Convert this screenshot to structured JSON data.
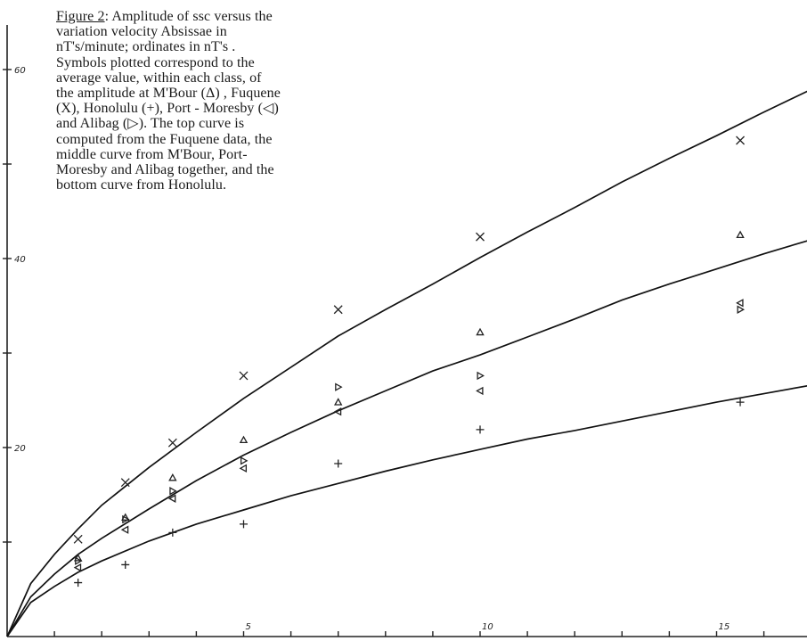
{
  "caption": {
    "figure_label": "Figure 2",
    "text": ": Amplitude of ssc versus the variation velocity Absissae in nT's/minute; ordinates in nT's . Symbols plotted correspond to the average value, within each class, of the amplitude at M'Bour (Δ) , Fuquene (X), Honolulu (+), Port - Moresby (◁) and Alibag (▷). The top curve is computed from the Fuquene data, the middle curve from M'Bour, Port-Moresby and Alibag together, and the bottom curve from Honolulu."
  },
  "chart_data": {
    "type": "scatter",
    "title": "",
    "xlabel": "",
    "ylabel": "",
    "xlim": [
      0,
      17
    ],
    "ylim": [
      0,
      67
    ],
    "x_ticks": [
      {
        "value": 1,
        "label": ""
      },
      {
        "value": 2,
        "label": ""
      },
      {
        "value": 3,
        "label": ""
      },
      {
        "value": 4,
        "label": ""
      },
      {
        "value": 5,
        "label": "5"
      },
      {
        "value": 6,
        "label": ""
      },
      {
        "value": 7,
        "label": ""
      },
      {
        "value": 8,
        "label": ""
      },
      {
        "value": 9,
        "label": ""
      },
      {
        "value": 10,
        "label": "10"
      },
      {
        "value": 11,
        "label": ""
      },
      {
        "value": 12,
        "label": ""
      },
      {
        "value": 13,
        "label": ""
      },
      {
        "value": 14,
        "label": ""
      },
      {
        "value": 15,
        "label": "15"
      },
      {
        "value": 16,
        "label": ""
      },
      {
        "value": 17,
        "label": ""
      }
    ],
    "y_ticks": [
      {
        "value": 10,
        "label": ""
      },
      {
        "value": 20,
        "label": "20"
      },
      {
        "value": 30,
        "label": ""
      },
      {
        "value": 40,
        "label": "40"
      },
      {
        "value": 50,
        "label": ""
      },
      {
        "value": 60,
        "label": "60"
      }
    ],
    "grid": false,
    "series": [
      {
        "marker": "cross",
        "x": [
          1.5,
          2.5,
          3.5,
          5,
          7,
          10,
          15.5
        ],
        "y": [
          10.3,
          16.3,
          20.5,
          27.6,
          34.6,
          42.3,
          52.5
        ]
      },
      {
        "marker": "triangle-up",
        "x": [
          1.5,
          2.5,
          3.5,
          5,
          7,
          10,
          15.5
        ],
        "y": [
          8.3,
          12.6,
          16.8,
          20.8,
          24.8,
          32.2,
          42.5
        ]
      },
      {
        "marker": "plus",
        "x": [
          1.5,
          2.5,
          3.5,
          5,
          7,
          10,
          15.5
        ],
        "y": [
          5.7,
          7.6,
          11.0,
          11.9,
          18.3,
          21.9,
          24.8
        ]
      },
      {
        "marker": "triangle-left",
        "x": [
          1.5,
          2.5,
          3.5,
          5,
          7,
          10,
          15.5
        ],
        "y": [
          7.3,
          11.3,
          14.6,
          17.8,
          23.8,
          26.0,
          35.3
        ]
      },
      {
        "marker": "triangle-right",
        "x": [
          1.5,
          2.5,
          3.5,
          5,
          7,
          10,
          15.5
        ],
        "y": [
          8.0,
          12.4,
          15.4,
          18.6,
          26.4,
          27.6,
          34.6
        ]
      }
    ],
    "curves": [
      {
        "points": [
          [
            0,
            0
          ],
          [
            0.5,
            5.6
          ],
          [
            1,
            8.7
          ],
          [
            1.5,
            11.4
          ],
          [
            2,
            13.9
          ],
          [
            3,
            17.9
          ],
          [
            4,
            21.6
          ],
          [
            5,
            25.2
          ],
          [
            6,
            28.5
          ],
          [
            7,
            31.8
          ],
          [
            8,
            34.6
          ],
          [
            9,
            37.3
          ],
          [
            10,
            40.1
          ],
          [
            11,
            42.8
          ],
          [
            12,
            45.4
          ],
          [
            13,
            48.1
          ],
          [
            14,
            50.6
          ],
          [
            15,
            53.0
          ],
          [
            16,
            55.5
          ],
          [
            17,
            57.9
          ]
        ]
      },
      {
        "points": [
          [
            0,
            0
          ],
          [
            0.5,
            4.2
          ],
          [
            1,
            6.6
          ],
          [
            1.5,
            8.7
          ],
          [
            2,
            10.4
          ],
          [
            3,
            13.5
          ],
          [
            4,
            16.5
          ],
          [
            5,
            19.2
          ],
          [
            6,
            21.6
          ],
          [
            7,
            23.9
          ],
          [
            8,
            26.0
          ],
          [
            9,
            28.1
          ],
          [
            10,
            29.8
          ],
          [
            11,
            31.7
          ],
          [
            12,
            33.6
          ],
          [
            13,
            35.6
          ],
          [
            14,
            37.3
          ],
          [
            15,
            38.9
          ],
          [
            16,
            40.5
          ],
          [
            17,
            42.0
          ]
        ]
      },
      {
        "points": [
          [
            0,
            0
          ],
          [
            0.5,
            3.6
          ],
          [
            1,
            5.3
          ],
          [
            1.5,
            6.8
          ],
          [
            2,
            8.0
          ],
          [
            3,
            10.1
          ],
          [
            4,
            11.9
          ],
          [
            5,
            13.4
          ],
          [
            6,
            14.9
          ],
          [
            7,
            16.2
          ],
          [
            8,
            17.5
          ],
          [
            9,
            18.7
          ],
          [
            10,
            19.8
          ],
          [
            11,
            20.9
          ],
          [
            12,
            21.8
          ],
          [
            13,
            22.8
          ],
          [
            14,
            23.8
          ],
          [
            15,
            24.8
          ],
          [
            16,
            25.7
          ],
          [
            17,
            26.6
          ]
        ]
      }
    ]
  }
}
